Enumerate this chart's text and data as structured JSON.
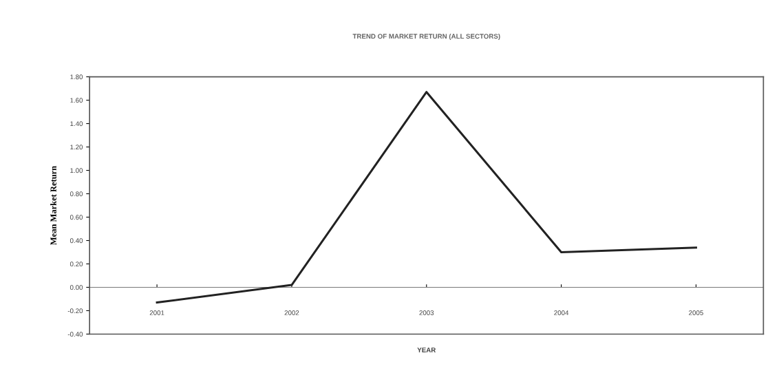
{
  "chart_data": {
    "type": "line",
    "title": "TREND OF MARKET RETURN (ALL SECTORS)",
    "xlabel": "YEAR",
    "ylabel": "Mean Market Return",
    "categories": [
      "2001",
      "2002",
      "2003",
      "2004",
      "2005"
    ],
    "series": [
      {
        "color": "#222222",
        "values": [
          -0.13,
          0.02,
          1.67,
          0.3,
          0.34
        ]
      }
    ],
    "ylim": [
      -0.4,
      1.8
    ],
    "yticks": [
      {
        "value": -0.4,
        "label": "-0.40"
      },
      {
        "value": -0.2,
        "label": "-0.20"
      },
      {
        "value": 0,
        "label": "0.00"
      },
      {
        "value": 0.2,
        "label": "0.20"
      },
      {
        "value": 0.4,
        "label": "0.40"
      },
      {
        "value": 0.6,
        "label": "0.60"
      },
      {
        "value": 0.8,
        "label": "0.80"
      },
      {
        "value": 1.0,
        "label": "1.00"
      },
      {
        "value": 1.2,
        "label": "1.20"
      },
      {
        "value": 1.4,
        "label": "1.40"
      },
      {
        "value": 1.6,
        "label": "1.60"
      },
      {
        "value": 1.8,
        "label": "1.80"
      }
    ],
    "legend": false,
    "marker": "none",
    "line_style": "solid"
  }
}
